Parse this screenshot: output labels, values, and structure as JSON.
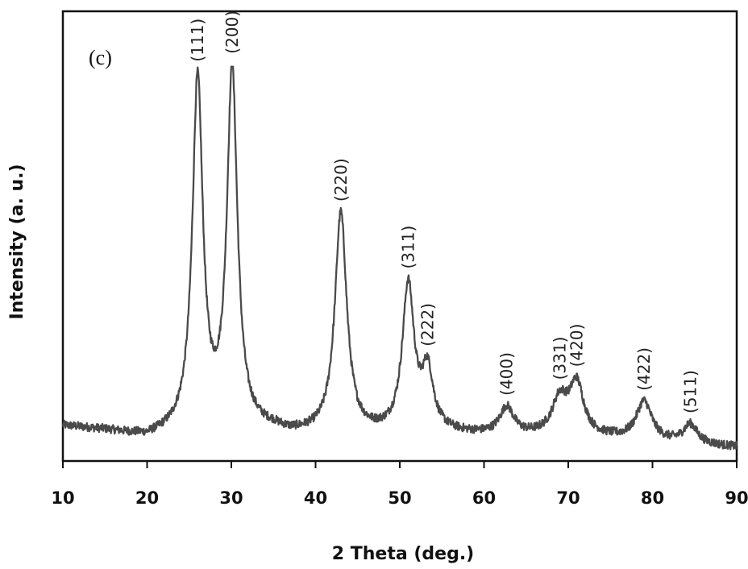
{
  "chart_data": {
    "type": "line",
    "panel_label": "(c)",
    "xlabel": "2 Theta (deg.)",
    "ylabel": "Intensity (a. u.)",
    "xlim": [
      10,
      90
    ],
    "ylim": [
      0,
      100
    ],
    "x_ticks": [
      "10",
      "20",
      "30",
      "40",
      "50",
      "60",
      "70",
      "80",
      "90"
    ],
    "y_ticks": [],
    "grid": false,
    "line_color": "#4a4a4a",
    "baseline": {
      "x": [
        10,
        15,
        20,
        25,
        28,
        35,
        37,
        45,
        50,
        55,
        60,
        65,
        70,
        75,
        80,
        85,
        90
      ],
      "y": [
        6.5,
        5.2,
        3.3,
        5,
        5,
        5,
        4,
        4,
        4,
        4.5,
        4,
        3.8,
        3.8,
        3.2,
        2.4,
        1.6,
        1
      ]
    },
    "peaks": [
      {
        "label": "(111)",
        "x": 26.0,
        "intensity": 90,
        "width": 0.75
      },
      {
        "label": "(200)",
        "x": 30.1,
        "intensity": 92,
        "width": 0.75
      },
      {
        "label": "(220)",
        "x": 43.0,
        "intensity": 57,
        "width": 0.85
      },
      {
        "label": "(311)",
        "x": 51.0,
        "intensity": 38,
        "width": 0.85
      },
      {
        "label": "(222)",
        "x": 53.3,
        "intensity": 15,
        "width": 0.8
      },
      {
        "label": "(400)",
        "x": 62.7,
        "intensity": 7,
        "width": 1.0
      },
      {
        "label": "(331)",
        "x": 69.0,
        "intensity": 9,
        "width": 1.1
      },
      {
        "label": "(420)",
        "x": 71.0,
        "intensity": 13,
        "width": 1.0
      },
      {
        "label": "(422)",
        "x": 79.0,
        "intensity": 10,
        "width": 1.1
      },
      {
        "label": "(511)",
        "x": 84.5,
        "intensity": 5,
        "width": 1.0
      }
    ]
  }
}
